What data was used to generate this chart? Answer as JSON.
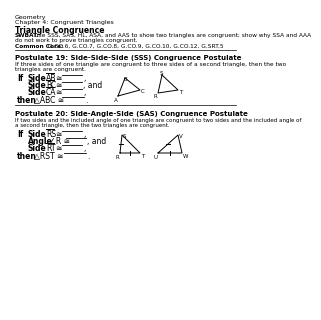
{
  "title": "Geometry",
  "chapter": "Chapter 4: Congruent Triangles",
  "section": "Triangle Congruence",
  "swbat_bold": "SWBAT:",
  "swbat_rest": " use SSS, SAS, HL, ASA, and AAS to show two triangles are congruent; show why SSA and AAA",
  "swbat_line2": "do not work to prove triangles congruent.",
  "cc_bold": "Common Core:",
  "cc_rest": " G.CO.6, G.CO.7, G.CO.8, G.CO.9, G.CO.10, G.CO.12, G.SRT.5",
  "p19_title": "Postulate 19: Side-Side-Side (SSS) Congruence Postulate",
  "p19_desc1": "If three sides of one triangle are congruent to three sides of a second triangle, then the two",
  "p19_desc2": "triangles are congruent.",
  "p20_title": "Postulate 20: Side-Angle-Side (SAS) Congruence Postulate",
  "p20_desc1": "If two sides and the included angle of one triangle are congruent to two sides and the included angle of",
  "p20_desc2": "a second triangle, then the two triangles are congruent.",
  "bg_color": "#ffffff"
}
